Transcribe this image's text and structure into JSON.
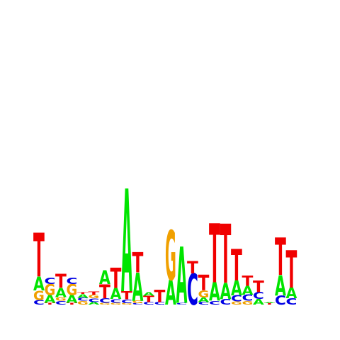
{
  "colors": {
    "A": "#00e400",
    "C": "#0000e4",
    "G": "#f0a000",
    "T": "#f00000",
    "background": "#ffffff"
  },
  "logo": {
    "type": "sequence-logo",
    "position_count": 24,
    "max_stack_height": 0.75,
    "positions": [
      [
        [
          "C",
          0.015
        ],
        [
          "G",
          0.03
        ],
        [
          "A",
          0.045
        ],
        [
          "T",
          0.14
        ]
      ],
      [
        [
          "T",
          0.006
        ],
        [
          "A",
          0.025
        ],
        [
          "G",
          0.035
        ],
        [
          "C",
          0.02
        ]
      ],
      [
        [
          "C",
          0.012
        ],
        [
          "G",
          0.012
        ],
        [
          "A",
          0.03
        ],
        [
          "T",
          0.045
        ]
      ],
      [
        [
          "T",
          0.006
        ],
        [
          "A",
          0.025
        ],
        [
          "G",
          0.035
        ],
        [
          "C",
          0.02
        ]
      ],
      [
        [
          "G",
          0.012
        ],
        [
          "C",
          0.01
        ],
        [
          "A",
          0.012
        ],
        [
          "T",
          0.005
        ]
      ],
      [
        [
          "A",
          0.008
        ],
        [
          "C",
          0.012
        ],
        [
          "G",
          0.012
        ],
        [
          "T",
          0.01
        ]
      ],
      [
        [
          "G",
          0.006
        ],
        [
          "C",
          0.015
        ],
        [
          "T",
          0.045
        ],
        [
          "A",
          0.045
        ]
      ],
      [
        [
          "G",
          0.006
        ],
        [
          "C",
          0.012
        ],
        [
          "A",
          0.035
        ],
        [
          "T",
          0.065
        ]
      ],
      [
        [
          "G",
          0.005
        ],
        [
          "C",
          0.012
        ],
        [
          "T",
          0.026
        ],
        [
          "A",
          0.33
        ]
      ],
      [
        [
          "C",
          0.005
        ],
        [
          "G",
          0.008
        ],
        [
          "A",
          0.09
        ],
        [
          "T",
          0.065
        ]
      ],
      [
        [
          "C",
          0.008
        ],
        [
          "T",
          0.02
        ],
        [
          "A",
          0.012
        ]
      ],
      [
        [
          "C",
          0.008
        ],
        [
          "T",
          0.04
        ]
      ],
      [
        [
          "A",
          0.08
        ],
        [
          "G",
          0.16
        ]
      ],
      [
        [
          "C",
          0.006
        ],
        [
          "A",
          0.18
        ]
      ],
      [
        [
          "C",
          0.1
        ],
        [
          "T",
          0.04
        ]
      ],
      [
        [
          "C",
          0.008
        ],
        [
          "A",
          0.015
        ],
        [
          "G",
          0.022
        ],
        [
          "T",
          0.05
        ]
      ],
      [
        [
          "C",
          0.012
        ],
        [
          "A",
          0.06
        ],
        [
          "T",
          0.19
        ]
      ],
      [
        [
          "C",
          0.018
        ],
        [
          "A",
          0.052
        ],
        [
          "T",
          0.19
        ]
      ],
      [
        [
          "G",
          0.01
        ],
        [
          "C",
          0.02
        ],
        [
          "A",
          0.048
        ],
        [
          "T",
          0.1
        ]
      ],
      [
        [
          "G",
          0.012
        ],
        [
          "C",
          0.02
        ],
        [
          "A",
          0.028
        ],
        [
          "T",
          0.032
        ]
      ],
      [
        [
          "A",
          0.018
        ],
        [
          "C",
          0.022
        ],
        [
          "T",
          0.037
        ]
      ],
      [
        [
          "T",
          0.005
        ],
        [
          "A",
          0.003
        ]
      ],
      [
        [
          "C",
          0.03
        ],
        [
          "A",
          0.065
        ],
        [
          "T",
          0.12
        ]
      ],
      [
        [
          "C",
          0.02
        ],
        [
          "A",
          0.035
        ],
        [
          "T",
          0.12
        ]
      ]
    ]
  }
}
